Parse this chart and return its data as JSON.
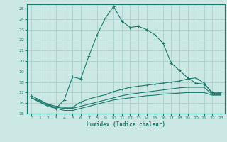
{
  "xlabel": "Humidex (Indice chaleur)",
  "bg_color": "#cce8e4",
  "line_color": "#1a7a6e",
  "grid_color": "#aacfcc",
  "xlim": [
    -0.5,
    23.5
  ],
  "ylim": [
    15,
    25.4
  ],
  "xticks": [
    0,
    1,
    2,
    3,
    4,
    5,
    6,
    7,
    8,
    9,
    10,
    11,
    12,
    13,
    14,
    15,
    16,
    17,
    18,
    19,
    20,
    21,
    22,
    23
  ],
  "yticks": [
    15,
    16,
    17,
    18,
    19,
    20,
    21,
    22,
    23,
    24,
    25
  ],
  "curve1_x": [
    0,
    1,
    2,
    3,
    4,
    5,
    6,
    7,
    8,
    9,
    10,
    11,
    12,
    13,
    14,
    15,
    16,
    17,
    18,
    19,
    20,
    21,
    22,
    23
  ],
  "curve1_y": [
    16.7,
    16.3,
    15.9,
    15.5,
    16.3,
    18.5,
    18.3,
    20.5,
    22.5,
    24.1,
    25.2,
    23.8,
    23.2,
    23.3,
    23.0,
    22.5,
    21.7,
    19.8,
    19.1,
    18.4,
    17.9,
    17.8,
    17.0,
    16.9
  ],
  "curve2_x": [
    0,
    1,
    2,
    3,
    4,
    5,
    6,
    7,
    8,
    9,
    10,
    11,
    12,
    13,
    14,
    15,
    16,
    17,
    18,
    19,
    20,
    21,
    22,
    23
  ],
  "curve2_y": [
    16.5,
    16.2,
    15.9,
    15.7,
    15.6,
    15.6,
    16.1,
    16.4,
    16.6,
    16.8,
    17.1,
    17.3,
    17.5,
    17.6,
    17.7,
    17.8,
    17.9,
    18.0,
    18.1,
    18.3,
    18.4,
    17.9,
    16.9,
    17.0
  ],
  "curve3_x": [
    0,
    1,
    2,
    3,
    4,
    5,
    6,
    7,
    8,
    9,
    10,
    11,
    12,
    13,
    14,
    15,
    16,
    17,
    18,
    19,
    20,
    21,
    22,
    23
  ],
  "curve3_y": [
    16.5,
    16.1,
    15.8,
    15.6,
    15.5,
    15.5,
    15.7,
    15.9,
    16.1,
    16.3,
    16.5,
    16.7,
    16.85,
    16.95,
    17.05,
    17.15,
    17.25,
    17.35,
    17.45,
    17.5,
    17.5,
    17.5,
    16.8,
    16.8
  ],
  "curve4_x": [
    0,
    1,
    2,
    3,
    4,
    5,
    6,
    7,
    8,
    9,
    10,
    11,
    12,
    13,
    14,
    15,
    16,
    17,
    18,
    19,
    20,
    21,
    22,
    23
  ],
  "curve4_y": [
    16.5,
    16.1,
    15.7,
    15.5,
    15.3,
    15.3,
    15.5,
    15.7,
    15.9,
    16.1,
    16.3,
    16.4,
    16.5,
    16.6,
    16.7,
    16.75,
    16.85,
    16.9,
    16.95,
    17.0,
    17.0,
    17.0,
    16.75,
    16.75
  ]
}
